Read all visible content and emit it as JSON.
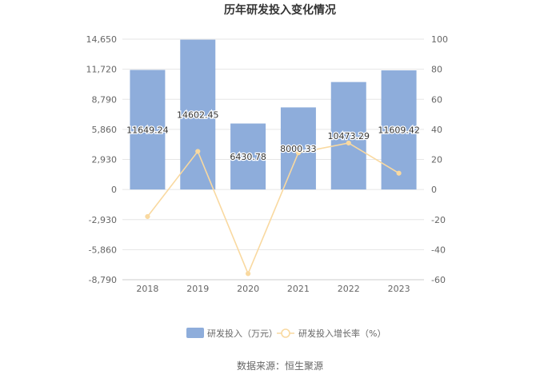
{
  "chart_data": {
    "type": "bar",
    "title": "历年研发投入变化情况",
    "categories": [
      "2018",
      "2019",
      "2020",
      "2021",
      "2022",
      "2023"
    ],
    "series": [
      {
        "name": "研发投入（万元）",
        "type": "bar",
        "axis": "left",
        "values": [
          11649.24,
          14602.45,
          6430.78,
          8000.33,
          10473.29,
          11609.42
        ],
        "labels": [
          "11649.24",
          "14602.45",
          "6430.78",
          "8000.33",
          "10473.29",
          "11609.42"
        ]
      },
      {
        "name": "研发投入增长率（%）",
        "type": "line",
        "axis": "right",
        "values": [
          -18.0,
          25.35,
          -55.96,
          24.41,
          30.91,
          10.85
        ]
      }
    ],
    "y_left": {
      "ylim": [
        -8790,
        14650
      ],
      "ticks": [
        14650,
        11720,
        8790,
        5860,
        2930,
        0,
        -2930,
        -5860,
        -8790
      ],
      "tick_labels": [
        "14,650",
        "11,720",
        "8,790",
        "5,860",
        "2,930",
        "0",
        "-2,930",
        "-5,860",
        "-8,790"
      ]
    },
    "y_right": {
      "ylim": [
        -60,
        100
      ],
      "ticks": [
        100,
        80,
        60,
        40,
        20,
        0,
        -20,
        -40,
        -60
      ],
      "tick_labels": [
        "100",
        "80",
        "60",
        "40",
        "20",
        "0",
        "-20",
        "-40",
        "-60"
      ]
    },
    "grid": true,
    "legend_position": "bottom",
    "colors": {
      "bar": "#8eaddb",
      "line": "#f9d9a0",
      "grid": "#e6e6e6",
      "text": "#666666",
      "title": "#333333"
    },
    "source": "数据来源：恒生聚源"
  }
}
